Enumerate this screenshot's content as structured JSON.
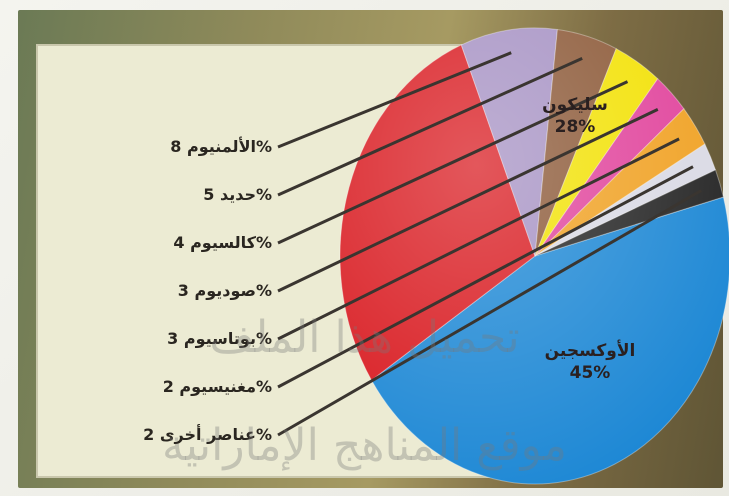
{
  "chart_data": {
    "type": "pie",
    "slices": [
      {
        "label": "الأوكسجين",
        "value": 45,
        "display": "45%",
        "color": "#1a86d4"
      },
      {
        "label": "سليكون",
        "value": 28,
        "display": "28%",
        "color": "#d8161c"
      },
      {
        "label": "الألمنيوم",
        "value": 8,
        "display": "8%",
        "color": "#a48fc2"
      },
      {
        "label": "حديد",
        "value": 5,
        "display": "5%",
        "color": "#8a5634"
      },
      {
        "label": "كالسيوم",
        "value": 4,
        "display": "4%",
        "color": "#f2e100"
      },
      {
        "label": "صوديوم",
        "value": 3,
        "display": "3%",
        "color": "#e0409a"
      },
      {
        "label": "بوتاسيوم",
        "value": 3,
        "display": "3%",
        "color": "#f0a020"
      },
      {
        "label": "مغنيسيوم",
        "value": 2,
        "display": "2%",
        "color": "#d9d9e4"
      },
      {
        "label": "عناصر أخرى",
        "value": 2,
        "display": "2%",
        "color": "#222222"
      }
    ]
  },
  "watermark": {
    "line1": "تحميل هذا الملف",
    "line2": "موقع المناهج الإماراتية"
  }
}
